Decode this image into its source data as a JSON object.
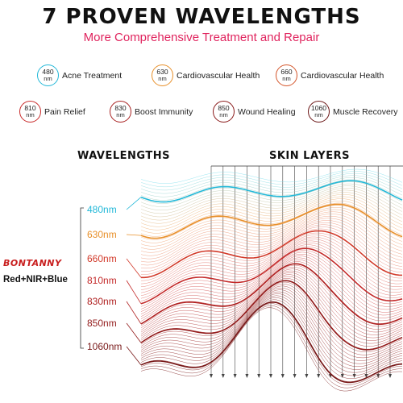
{
  "header": {
    "title": "7  PROVEN WAVELENGTHS",
    "subtitle": "More Comprehensive Treatment and Repair"
  },
  "wavelength_items": [
    {
      "value": "480",
      "unit": "nm",
      "label": "Acne Treatment",
      "color": "#22b8d8"
    },
    {
      "value": "630",
      "unit": "nm",
      "label": "Cardiovascular Health",
      "color": "#e8902a"
    },
    {
      "value": "660",
      "unit": "nm",
      "label": "Cardiovascular Health",
      "color": "#d4552a"
    },
    {
      "value": "810",
      "unit": "nm",
      "label": "Pain Relief",
      "color": "#c82a2a"
    },
    {
      "value": "830",
      "unit": "nm",
      "label": "Boost Immunity",
      "color": "#a82020"
    },
    {
      "value": "850",
      "unit": "nm",
      "label": "Wound Healing",
      "color": "#8a1a1a"
    },
    {
      "value": "1060",
      "unit": "nm",
      "label": "Muscle Recovery",
      "color": "#6a1414"
    }
  ],
  "diagram": {
    "wavelengths_heading": "WAVELENGTHS",
    "skin_layers_heading": "SKIN LAYERS",
    "bands": [
      {
        "label": "480nm",
        "color": "#22b8d8"
      },
      {
        "label": "630nm",
        "color": "#e8902a"
      },
      {
        "label": "660nm",
        "color": "#d23a2a"
      },
      {
        "label": "810nm",
        "color": "#c42a2a"
      },
      {
        "label": "830nm",
        "color": "#b02222"
      },
      {
        "label": "850nm",
        "color": "#931c1c"
      },
      {
        "label": "1060nm",
        "color": "#781818"
      }
    ]
  },
  "brand": {
    "name": "BONTANNY",
    "tagline": "Red+NIR+Blue"
  }
}
